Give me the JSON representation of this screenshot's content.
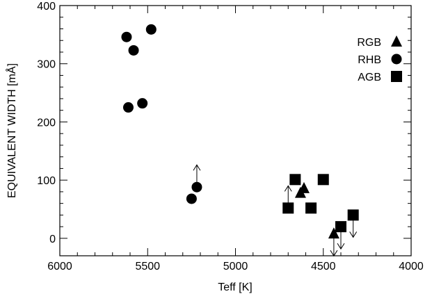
{
  "chart_data": {
    "type": "scatter",
    "xlabel": "Teff [K]",
    "ylabel": "EQUIVALENT WIDTH [mÅ]",
    "xlim": [
      6000,
      4000
    ],
    "ylim": [
      -30,
      400
    ],
    "x_ticks": [
      "6000",
      "5500",
      "5000",
      "4500",
      "4000"
    ],
    "y_ticks": [
      "0",
      "100",
      "200",
      "300",
      "400"
    ],
    "legend_position": "top-right",
    "series": [
      {
        "name": "RGB",
        "marker": "triangle",
        "points": [
          {
            "x": 4630,
            "y": 78
          },
          {
            "x": 4610,
            "y": 86
          },
          {
            "x": 4440,
            "y": 8,
            "limit": "upper"
          }
        ]
      },
      {
        "name": "RHB",
        "marker": "circle",
        "points": [
          {
            "x": 5620,
            "y": 346
          },
          {
            "x": 5580,
            "y": 323
          },
          {
            "x": 5480,
            "y": 359
          },
          {
            "x": 5610,
            "y": 225
          },
          {
            "x": 5530,
            "y": 232
          },
          {
            "x": 5250,
            "y": 68
          },
          {
            "x": 5220,
            "y": 88,
            "limit": "lower"
          }
        ]
      },
      {
        "name": "AGB",
        "marker": "square",
        "points": [
          {
            "x": 4700,
            "y": 52,
            "limit": "lower"
          },
          {
            "x": 4660,
            "y": 101
          },
          {
            "x": 4570,
            "y": 52
          },
          {
            "x": 4500,
            "y": 101
          },
          {
            "x": 4400,
            "y": 20,
            "limit": "upper"
          },
          {
            "x": 4330,
            "y": 40,
            "limit": "upper"
          }
        ]
      }
    ]
  }
}
